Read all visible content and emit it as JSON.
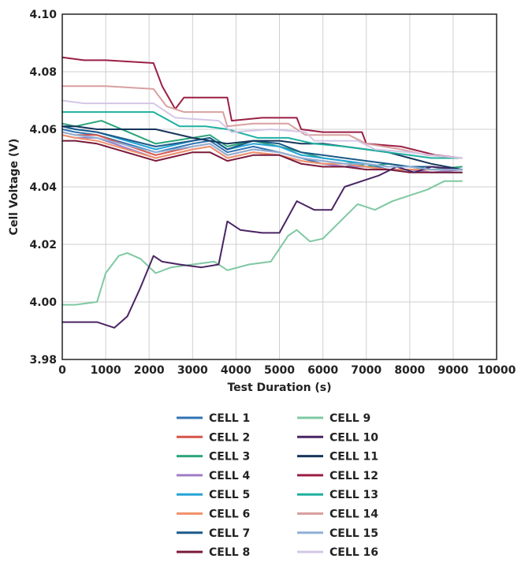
{
  "chart_data": {
    "type": "line",
    "title": "",
    "xlabel": "Test Duration (s)",
    "ylabel": "Cell Voltage (V)",
    "xlim": [
      0,
      10000
    ],
    "ylim": [
      3.98,
      4.1
    ],
    "xticks": [
      "0",
      "1000",
      "2000",
      "3000",
      "4000",
      "5000",
      "6000",
      "7000",
      "8000",
      "9000",
      "10000"
    ],
    "yticks": [
      "3.98",
      "4.00",
      "4.02",
      "4.04",
      "4.06",
      "4.08",
      "4.10"
    ],
    "grid": true,
    "legend_position": "bottom",
    "series": [
      {
        "name": "CELL 1",
        "color": "#2f73b3",
        "x": [
          0,
          300,
          800,
          2150,
          3000,
          3400,
          3800,
          4400,
          5000,
          5500,
          6000,
          6500,
          7000,
          7500,
          8000,
          8500,
          9200
        ],
        "y": [
          4.06,
          4.059,
          4.058,
          4.052,
          4.055,
          4.056,
          4.052,
          4.054,
          4.052,
          4.05,
          4.048,
          4.047,
          4.048,
          4.046,
          4.046,
          4.045,
          4.045
        ]
      },
      {
        "name": "CELL 2",
        "color": "#d6554a",
        "x": [
          0,
          300,
          800,
          2150,
          3000,
          3400,
          3800,
          4400,
          5000,
          5500,
          6000,
          6500,
          7000,
          7500,
          8000,
          8500,
          9200
        ],
        "y": [
          4.059,
          4.058,
          4.058,
          4.051,
          4.054,
          4.055,
          4.051,
          4.053,
          4.052,
          4.05,
          4.049,
          4.048,
          4.047,
          4.046,
          4.046,
          4.046,
          4.046
        ]
      },
      {
        "name": "CELL 3",
        "color": "#2aa57a",
        "x": [
          0,
          300,
          900,
          2150,
          3000,
          3400,
          3800,
          4400,
          5000,
          5500,
          6000,
          6500,
          7000,
          7500,
          8000,
          8500,
          9200
        ],
        "y": [
          4.062,
          4.061,
          4.063,
          4.055,
          4.057,
          4.058,
          4.054,
          4.056,
          4.054,
          4.052,
          4.05,
          4.049,
          4.047,
          4.048,
          4.047,
          4.046,
          4.047
        ]
      },
      {
        "name": "CELL 4",
        "color": "#a07cc5",
        "x": [
          0,
          300,
          800,
          2150,
          3000,
          3400,
          3800,
          4400,
          5000,
          5500,
          6000,
          6500,
          7000,
          7500,
          8000,
          8500,
          9200
        ],
        "y": [
          4.058,
          4.057,
          4.057,
          4.05,
          4.053,
          4.054,
          4.05,
          4.052,
          4.051,
          4.049,
          4.048,
          4.047,
          4.047,
          4.046,
          4.046,
          4.045,
          4.046
        ]
      },
      {
        "name": "CELL 5",
        "color": "#25a4d6",
        "x": [
          0,
          300,
          800,
          2150,
          3000,
          3400,
          3800,
          4400,
          5000,
          5500,
          6000,
          6500,
          7000,
          7500,
          8000,
          8500,
          9200
        ],
        "y": [
          4.061,
          4.06,
          4.059,
          4.053,
          4.056,
          4.057,
          4.053,
          4.055,
          4.054,
          4.051,
          4.05,
          4.049,
          4.048,
          4.047,
          4.047,
          4.046,
          4.046
        ]
      },
      {
        "name": "CELL 6",
        "color": "#f0936c",
        "x": [
          0,
          300,
          800,
          2150,
          3000,
          3400,
          3800,
          4400,
          5000,
          5500,
          6000,
          6500,
          7000,
          7500,
          8000,
          8500,
          9200
        ],
        "y": [
          4.058,
          4.057,
          4.056,
          4.05,
          4.053,
          4.054,
          4.05,
          4.052,
          4.051,
          4.049,
          4.048,
          4.048,
          4.047,
          4.046,
          4.046,
          4.046,
          4.046
        ]
      },
      {
        "name": "CELL 7",
        "color": "#1b5a8a",
        "x": [
          0,
          300,
          800,
          2150,
          3000,
          3400,
          3800,
          4400,
          5000,
          5500,
          6000,
          6500,
          7000,
          7500,
          8000,
          8500,
          9200
        ],
        "y": [
          4.061,
          4.06,
          4.059,
          4.054,
          4.056,
          4.057,
          4.053,
          4.056,
          4.055,
          4.052,
          4.051,
          4.05,
          4.049,
          4.048,
          4.047,
          4.047,
          4.046
        ]
      },
      {
        "name": "CELL 8",
        "color": "#7a1a3a",
        "x": [
          0,
          300,
          800,
          2150,
          3000,
          3400,
          3800,
          4400,
          5000,
          5500,
          6000,
          6500,
          7000,
          7500,
          8000,
          8500,
          9200
        ],
        "y": [
          4.056,
          4.056,
          4.055,
          4.049,
          4.052,
          4.052,
          4.049,
          4.051,
          4.051,
          4.048,
          4.047,
          4.047,
          4.046,
          4.046,
          4.045,
          4.045,
          4.045
        ]
      },
      {
        "name": "CELL 9",
        "color": "#7fc8a2",
        "x": [
          0,
          300,
          800,
          1000,
          1300,
          1500,
          1800,
          2150,
          2500,
          3000,
          3500,
          3800,
          4300,
          4800,
          5200,
          5400,
          5700,
          6000,
          6400,
          6800,
          7200,
          7600,
          8000,
          8400,
          8800,
          9200
        ],
        "y": [
          3.999,
          3.999,
          4.0,
          4.01,
          4.016,
          4.017,
          4.015,
          4.01,
          4.012,
          4.013,
          4.014,
          4.011,
          4.013,
          4.014,
          4.023,
          4.025,
          4.021,
          4.022,
          4.028,
          4.034,
          4.032,
          4.035,
          4.037,
          4.039,
          4.042,
          4.042
        ]
      },
      {
        "name": "CELL 10",
        "color": "#4a2463",
        "x": [
          0,
          300,
          800,
          1200,
          1500,
          1800,
          2100,
          2300,
          2700,
          3200,
          3600,
          3800,
          4100,
          4600,
          5000,
          5400,
          5800,
          6200,
          6500,
          6900,
          7300,
          7700,
          8100,
          8500,
          9200
        ],
        "y": [
          3.993,
          3.993,
          3.993,
          3.991,
          3.995,
          4.005,
          4.016,
          4.014,
          4.013,
          4.012,
          4.013,
          4.028,
          4.025,
          4.024,
          4.024,
          4.035,
          4.032,
          4.032,
          4.04,
          4.042,
          4.044,
          4.047,
          4.045,
          4.047,
          4.046
        ]
      },
      {
        "name": "CELL 11",
        "color": "#16365c",
        "x": [
          0,
          300,
          800,
          1500,
          2150,
          3000,
          3400,
          3800,
          4400,
          5000,
          5500,
          6000,
          6500,
          7000,
          7500,
          8000,
          8500,
          9200
        ],
        "y": [
          4.061,
          4.061,
          4.06,
          4.06,
          4.06,
          4.057,
          4.056,
          4.055,
          4.056,
          4.056,
          4.055,
          4.055,
          4.054,
          4.053,
          4.052,
          4.05,
          4.048,
          4.046
        ]
      },
      {
        "name": "CELL 12",
        "color": "#9b1f45",
        "x": [
          0,
          500,
          1000,
          2100,
          2300,
          2600,
          2800,
          3800,
          3900,
          4600,
          5400,
          5500,
          6000,
          6900,
          7000,
          7800,
          8600,
          9200
        ],
        "y": [
          4.085,
          4.084,
          4.084,
          4.083,
          4.075,
          4.067,
          4.071,
          4.071,
          4.063,
          4.064,
          4.064,
          4.06,
          4.059,
          4.059,
          4.055,
          4.054,
          4.051,
          4.05
        ]
      },
      {
        "name": "CELL 13",
        "color": "#1fb0a0",
        "x": [
          0,
          500,
          1000,
          2100,
          2700,
          3300,
          3800,
          4500,
          5200,
          5800,
          6500,
          7000,
          7500,
          8000,
          8500,
          9200
        ],
        "y": [
          4.066,
          4.066,
          4.066,
          4.066,
          4.061,
          4.061,
          4.06,
          4.057,
          4.057,
          4.055,
          4.054,
          4.053,
          4.052,
          4.051,
          4.05,
          4.05
        ]
      },
      {
        "name": "CELL 14",
        "color": "#d9a0a0",
        "x": [
          0,
          500,
          1000,
          2100,
          2400,
          2800,
          3700,
          3800,
          4400,
          5200,
          5600,
          6600,
          7000,
          7800,
          8400,
          9200
        ],
        "y": [
          4.075,
          4.075,
          4.075,
          4.074,
          4.068,
          4.066,
          4.066,
          4.061,
          4.062,
          4.062,
          4.058,
          4.058,
          4.055,
          4.053,
          4.051,
          4.05
        ]
      },
      {
        "name": "CELL 15",
        "color": "#8fb0d6",
        "x": [
          0,
          300,
          800,
          2150,
          3000,
          3400,
          3800,
          4400,
          5000,
          5500,
          6000,
          6500,
          7000,
          7500,
          8000,
          8500,
          9200
        ],
        "y": [
          4.059,
          4.058,
          4.057,
          4.052,
          4.054,
          4.055,
          4.051,
          4.053,
          4.052,
          4.05,
          4.049,
          4.048,
          4.048,
          4.047,
          4.047,
          4.046,
          4.046
        ]
      },
      {
        "name": "CELL 16",
        "color": "#d4c6e6",
        "x": [
          0,
          500,
          1000,
          2100,
          2600,
          3600,
          3900,
          4800,
          5600,
          5800,
          6800,
          7200,
          8000,
          8500,
          9200
        ],
        "y": [
          4.07,
          4.069,
          4.069,
          4.069,
          4.064,
          4.063,
          4.059,
          4.06,
          4.059,
          4.056,
          4.056,
          4.053,
          4.052,
          4.051,
          4.05
        ]
      }
    ]
  }
}
